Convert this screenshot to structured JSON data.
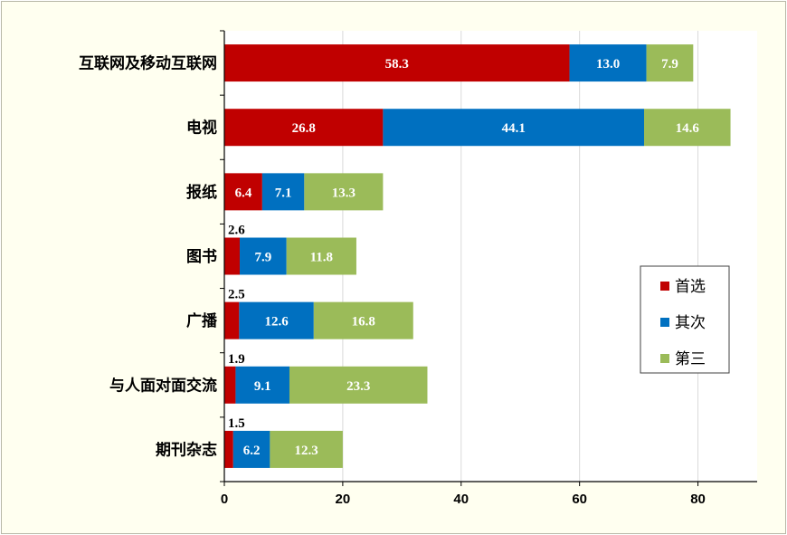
{
  "chart_data": {
    "type": "bar",
    "orientation": "horizontal",
    "stacked": true,
    "categories": [
      "互联网及移动互联网",
      "电视",
      "报纸",
      "图书",
      "广播",
      "与人面对面交流",
      "期刊杂志"
    ],
    "series": [
      {
        "name": "首选",
        "color": "#c00000",
        "values": [
          58.3,
          26.8,
          6.4,
          2.6,
          2.5,
          1.9,
          1.5
        ]
      },
      {
        "name": "其次",
        "color": "#0070c0",
        "values": [
          13.0,
          44.1,
          7.1,
          7.9,
          12.6,
          9.1,
          6.2
        ]
      },
      {
        "name": "第三",
        "color": "#9bbb59",
        "values": [
          7.9,
          14.6,
          13.3,
          11.8,
          16.8,
          23.3,
          12.3
        ]
      }
    ],
    "xlim": [
      0,
      90
    ],
    "xticks": [
      0,
      20,
      40,
      60,
      80
    ],
    "tick_labels": [
      "0",
      "20",
      "40",
      "60",
      "80"
    ],
    "grid": "vertical",
    "legend_position": "right"
  }
}
